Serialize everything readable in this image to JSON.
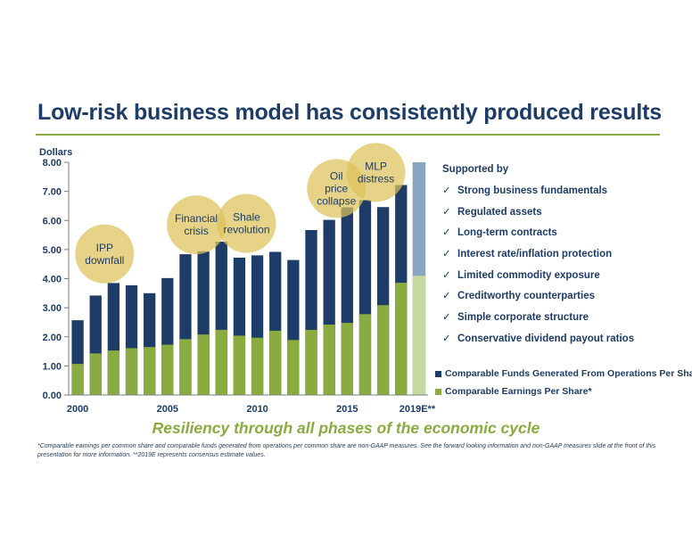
{
  "title": "Low-risk business model has consistently produced results",
  "supported_heading": "Supported by",
  "supported_items": [
    "Strong business fundamentals",
    "Regulated assets",
    "Long-term contracts",
    "Interest rate/inflation protection",
    "Limited commodity exposure",
    "Creditworthy counterparties",
    "Simple corporate structure",
    "Conservative dividend payout ratios"
  ],
  "check_icon": "✓",
  "tagline": "Resiliency through all phases of the economic cycle",
  "footnote": "*Comparable earnings per common share and comparable funds generated from operations per common share are non-GAAP measures. See the forward looking information and non-GAAP measures slide at the front of this presentation for more information. **2019E represents consensus estimate values.",
  "colors": {
    "navy": "#1d3c68",
    "green": "#8aab3f",
    "navy_estimate": "#87a4c0",
    "green_estimate": "#c6d9a3",
    "bubble": "#dcc25a"
  },
  "chart_data": {
    "type": "bar",
    "ylabel": "Dollars",
    "ylim": [
      0,
      8
    ],
    "yticks": [
      "0.00",
      "1.00",
      "2.00",
      "3.00",
      "4.00",
      "5.00",
      "6.00",
      "7.00",
      "8.00"
    ],
    "xtick_labels": [
      "2000",
      "2005",
      "2010",
      "2015",
      "2019E**"
    ],
    "categories": [
      "2000",
      "2001",
      "2002",
      "2003",
      "2004",
      "2005",
      "2006",
      "2007",
      "2008",
      "2009",
      "2010",
      "2011",
      "2012",
      "2013",
      "2014",
      "2015",
      "2016",
      "2017",
      "2018",
      "2019E**"
    ],
    "series": [
      {
        "name": "Comparable Funds Generated From Operations Per Share*",
        "values": [
          2.57,
          3.42,
          3.85,
          3.77,
          3.5,
          4.02,
          4.84,
          4.94,
          5.27,
          4.72,
          4.8,
          4.92,
          4.64,
          5.67,
          6.02,
          6.45,
          6.7,
          6.46,
          7.22,
          8.0
        ]
      },
      {
        "name": "Comparable Earnings Per Share*",
        "values": [
          1.07,
          1.43,
          1.53,
          1.61,
          1.65,
          1.73,
          1.92,
          2.08,
          2.24,
          2.04,
          1.97,
          2.21,
          1.89,
          2.24,
          2.42,
          2.48,
          2.78,
          3.09,
          3.86,
          4.1
        ]
      }
    ],
    "estimate_category": "2019E**",
    "annotations": [
      {
        "text": "IPP downfall",
        "lines": [
          "IPP",
          "downfall"
        ],
        "x": "2001.5",
        "y": 4.85
      },
      {
        "text": "Financial crisis",
        "lines": [
          "Financial",
          "crisis"
        ],
        "x": "2006.6",
        "y": 5.85
      },
      {
        "text": "Shale revolution",
        "lines": [
          "Shale",
          "revolution"
        ],
        "x": "2009.4",
        "y": 5.9
      },
      {
        "text": "Oil price collapse",
        "lines": [
          "Oil",
          "price",
          "collapse"
        ],
        "x": "2014.4",
        "y": 7.1
      },
      {
        "text": "MLP distress",
        "lines": [
          "MLP",
          "distress"
        ],
        "x": "2016.6",
        "y": 7.65
      }
    ]
  }
}
